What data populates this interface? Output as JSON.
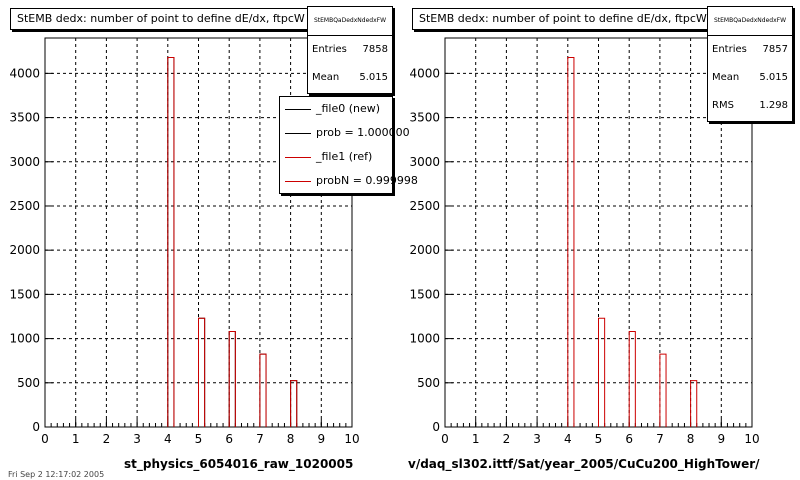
{
  "chart_data": [
    {
      "type": "bar",
      "title": "StEMB dedx: number of point to define dE/dx, ftpcW",
      "x": {
        "range": [
          0,
          10
        ],
        "ticks": [
          "0",
          "1",
          "2",
          "3",
          "4",
          "5",
          "6",
          "7",
          "8",
          "9",
          "10"
        ]
      },
      "y": {
        "range": [
          0,
          4400
        ],
        "ticks": [
          "0",
          "500",
          "1000",
          "1500",
          "2000",
          "2500",
          "3000",
          "3500",
          "4000"
        ]
      },
      "bins": [
        4,
        5,
        6,
        7,
        8
      ],
      "series": [
        {
          "name": "_file0 (new)",
          "color": "#000000",
          "values": [
            4180,
            1230,
            1080,
            825,
            525
          ]
        },
        {
          "name": "_file1 (ref)",
          "color": "#cc0000",
          "values": [
            4180,
            1230,
            1080,
            825,
            525
          ]
        }
      ],
      "stats": {
        "name": "StEMBQaDedxNdedxFW",
        "entries": "7858",
        "mean": "5.015"
      },
      "legend": [
        {
          "label": "_file0 (new)",
          "color": "#000000"
        },
        {
          "label": "prob = 1.000000",
          "color": "#000000"
        },
        {
          "label": "_file1 (ref)",
          "color": "#cc0000"
        },
        {
          "label": "probN = 0.999998",
          "color": "#cc0000"
        }
      ],
      "xlabel": "st_physics_6054016_raw_1020005",
      "grid": true
    },
    {
      "type": "bar",
      "title": "StEMB dedx: number of point to define dE/dx, ftpcW",
      "x": {
        "range": [
          0,
          10
        ],
        "ticks": [
          "0",
          "1",
          "2",
          "3",
          "4",
          "5",
          "6",
          "7",
          "8",
          "9",
          "10"
        ]
      },
      "y": {
        "range": [
          0,
          4400
        ],
        "ticks": [
          "0",
          "500",
          "1000",
          "1500",
          "2000",
          "2500",
          "3000",
          "3500",
          "4000"
        ]
      },
      "bins": [
        4,
        5,
        6,
        7,
        8
      ],
      "series": [
        {
          "name": "",
          "color": "#cc0000",
          "values": [
            4180,
            1230,
            1080,
            825,
            525
          ]
        }
      ],
      "stats": {
        "name": "StEMBQaDedxNdedxFW",
        "entries": "7857",
        "mean": "5.015",
        "rms": "1.298"
      },
      "xlabel": "v/daq_sl302.ittf/Sat/year_2005/CuCu200_HighTower/",
      "grid": true
    }
  ],
  "labels": {
    "entries": "Entries",
    "mean": "Mean",
    "rms": "RMS"
  },
  "footer": "Fri Sep  2 12:17:02 2005"
}
